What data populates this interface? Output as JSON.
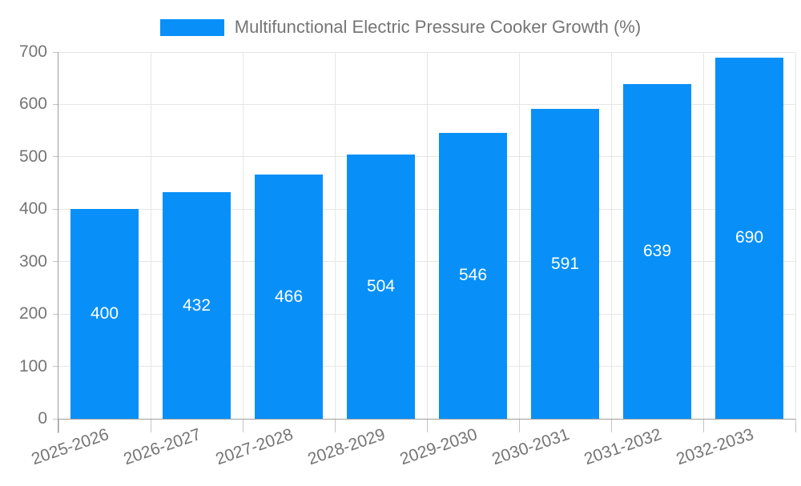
{
  "chart_data": {
    "type": "bar",
    "title": "Multifunctional Electric Pressure Cooker Growth (%)",
    "categories": [
      "2025-2026",
      "2026-2027",
      "2027-2028",
      "2028-2029",
      "2029-2030",
      "2030-2031",
      "2031-2032",
      "2032-2033"
    ],
    "values": [
      400,
      432,
      466,
      504,
      546,
      591,
      639,
      690
    ],
    "xlabel": "",
    "ylabel": "",
    "ylim": [
      0,
      700
    ],
    "y_ticks": [
      0,
      100,
      200,
      300,
      400,
      500,
      600,
      700
    ],
    "grid": true,
    "legend_position": "top",
    "value_label_position": "inside-center",
    "x_label_rotation_deg": -19,
    "colors": {
      "bar": "#0890F8",
      "grid_line": "#e6e6e6",
      "axis_line": "#9e9e9e",
      "tick": "#c4c4c4",
      "axis_label": "#757575",
      "value_label": "#ffffff"
    }
  }
}
